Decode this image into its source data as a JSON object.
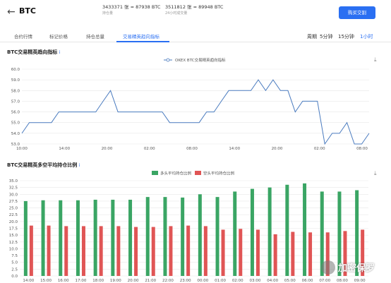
{
  "header": {
    "back_icon": "arrow-left-icon",
    "symbol": "BTC",
    "stat1_value": "3433371 张 ≈ 87938 BTC",
    "stat1_label": "持仓量",
    "stat2_value": "3511812 张 ≈ 89948 BTC",
    "stat2_label": "24小时成交量",
    "buy_label": "购买交割"
  },
  "tabs": [
    "合约行情",
    "标记价格",
    "持仓总量",
    "交易精英趋向指标"
  ],
  "active_tab": 3,
  "periods": {
    "label": "周期",
    "options": [
      "5分钟",
      "15分钟",
      "1小时"
    ],
    "active": 2
  },
  "chart1": {
    "title": "BTC交易精英趋向指标",
    "info": "i",
    "download_icon": "download-icon"
  },
  "chart2": {
    "title": "BTC交易精英多空平均持仓比例",
    "info": "i",
    "download_icon": "download-icon"
  },
  "watermark": {
    "text": "加密保罗"
  },
  "colors": {
    "line": "#4a7bbf",
    "long": "#3aa564",
    "short": "#e05555",
    "accent": "#2a6ff2"
  },
  "chart_data": [
    {
      "type": "line",
      "title": "BTC交易精英趋向指标",
      "series": [
        {
          "name": "OKEX BTC交易精英趋向指标",
          "values": [
            54,
            55,
            55,
            55,
            55,
            56,
            56,
            56,
            56,
            56,
            56,
            57,
            58,
            56,
            56,
            56,
            56,
            56,
            56,
            56,
            55,
            55,
            55,
            55,
            55,
            56,
            56,
            57,
            58,
            58,
            58,
            58,
            59,
            58,
            59,
            58,
            58,
            56,
            57,
            57,
            57,
            53,
            54,
            54,
            55,
            53,
            53,
            54
          ]
        }
      ],
      "ylim": [
        53,
        60
      ],
      "yticks": [
        "53.0",
        "54.0",
        "55.0",
        "56.0",
        "57.0",
        "58.0",
        "59.0",
        "60.0"
      ],
      "xticks": [
        "10:00",
        "14:00",
        "20:00",
        "02:00",
        "08:00",
        "14:00",
        "20:00",
        "02:00",
        "08:00"
      ],
      "grid": true,
      "legend": "top-center"
    },
    {
      "type": "bar",
      "title": "BTC交易精英多空平均持仓比例",
      "categories": [
        "14:00",
        "15:00",
        "16:00",
        "17:00",
        "18:00",
        "19:00",
        "20:00",
        "21:00",
        "22:00",
        "23:00",
        "00:00",
        "01:00",
        "02:00",
        "03:00",
        "04:00",
        "05:00",
        "06:00",
        "07:00",
        "08:00",
        "09:00"
      ],
      "series": [
        {
          "name": "多头平均持仓比例",
          "values": [
            27.5,
            27.8,
            27.8,
            27.8,
            28.0,
            28.0,
            28.0,
            29.0,
            29.0,
            28.8,
            30.0,
            29.0,
            31.0,
            32.0,
            32.5,
            33.5,
            34.0,
            31.0,
            31.0,
            31.5
          ]
        },
        {
          "name": "空头平均持仓比例",
          "values": [
            18.5,
            18.5,
            18.3,
            18.3,
            18.3,
            18.3,
            18.0,
            18.0,
            18.3,
            18.5,
            18.3,
            17.0,
            17.3,
            17.0,
            15.3,
            16.2,
            16.0,
            16.0,
            16.5,
            17.0
          ]
        }
      ],
      "ylim": [
        0,
        35
      ],
      "yticks": [
        "0.0",
        "2.5",
        "5.0",
        "7.5",
        "10.0",
        "12.5",
        "15.0",
        "17.5",
        "20.0",
        "22.5",
        "25.0",
        "27.5",
        "30.0",
        "32.5",
        "35.0"
      ],
      "grid": true,
      "legend": "top-center"
    }
  ]
}
